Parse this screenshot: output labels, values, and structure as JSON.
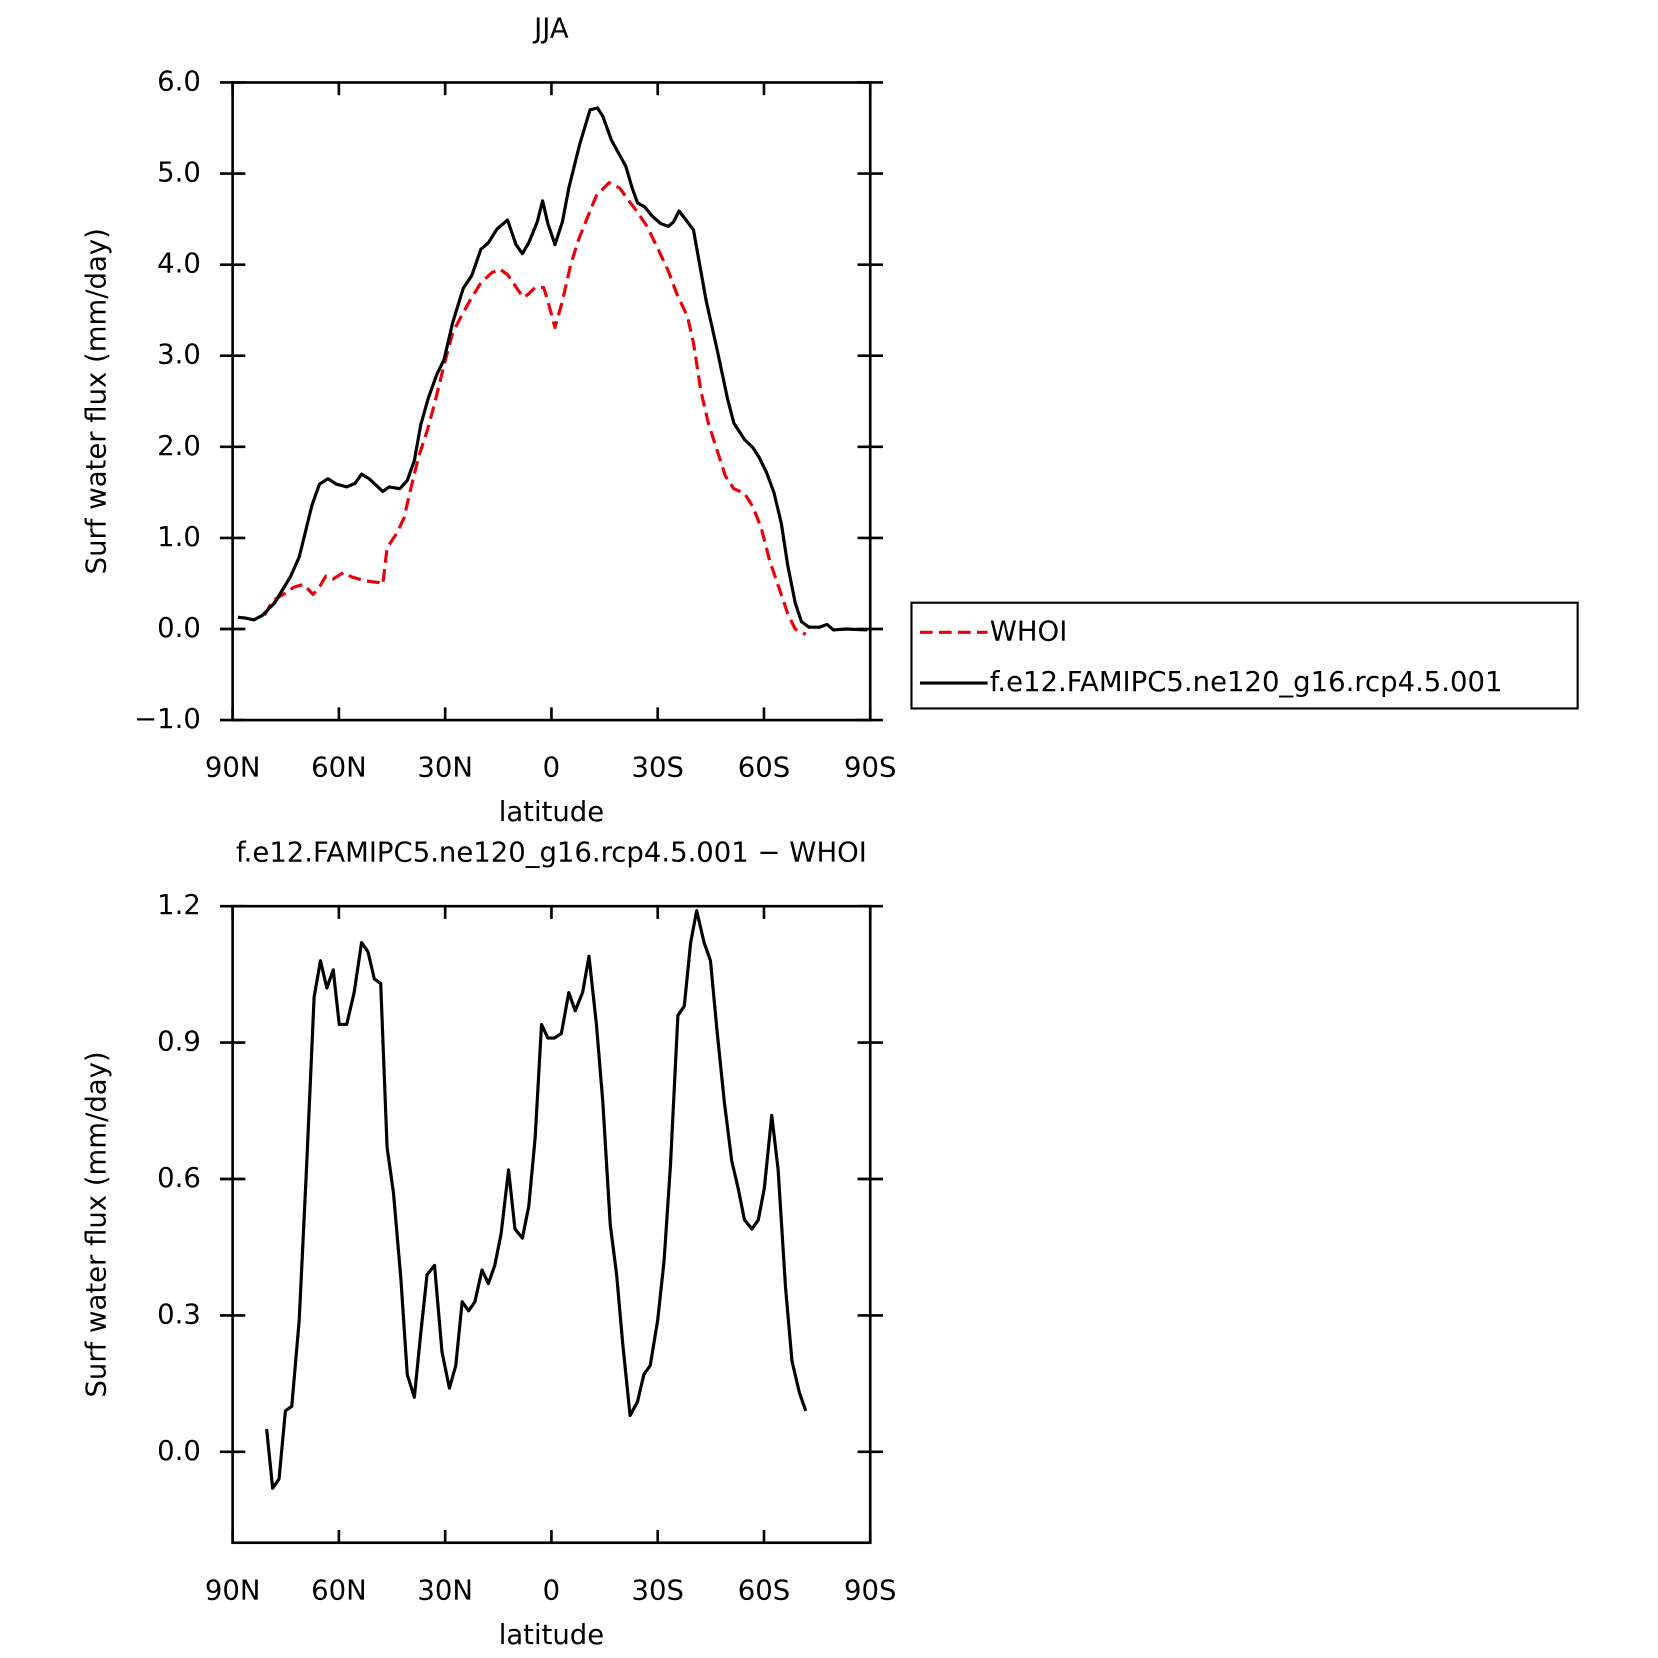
{
  "chart_data": [
    {
      "type": "line",
      "title": "JJA",
      "xlabel": "latitude",
      "ylabel": "Surf water flux (mm/day)",
      "xlim": [
        90,
        -90
      ],
      "xticks": [
        {
          "value": 90,
          "label": "90N"
        },
        {
          "value": 60,
          "label": "60N"
        },
        {
          "value": 30,
          "label": "30N"
        },
        {
          "value": 0,
          "label": "0"
        },
        {
          "value": -30,
          "label": "30S"
        },
        {
          "value": -60,
          "label": "60S"
        },
        {
          "value": -90,
          "label": "90S"
        }
      ],
      "ylim": [
        -1.0,
        6.0
      ],
      "yticks": [
        {
          "value": -1,
          "label": "−1.0"
        },
        {
          "value": 0,
          "label": "0.0"
        },
        {
          "value": 1,
          "label": "1.0"
        },
        {
          "value": 2,
          "label": "2.0"
        },
        {
          "value": 3,
          "label": "3.0"
        },
        {
          "value": 4,
          "label": "4.0"
        },
        {
          "value": 5,
          "label": "5.0"
        },
        {
          "value": 6,
          "label": "6.0"
        }
      ],
      "legend": "right",
      "series": [
        {
          "name": "WHOI",
          "color": "#e8000b",
          "dash": true,
          "x": [
            81.0,
            78.7,
            75.7,
            72.7,
            70.0,
            67.3,
            65.5,
            63.7,
            61.6,
            58.7,
            56.3,
            52.7,
            48.8,
            47.6,
            46.4,
            43.7,
            41.6,
            39.9,
            37.5,
            34.8,
            32.7,
            30.3,
            27.9,
            25.5,
            22.8,
            19.9,
            16.9,
            14.5,
            12.4,
            9.4,
            7.9,
            6.4,
            4.6,
            2.2,
            1.0,
            -1.0,
            -3.1,
            -5.5,
            -7.9,
            -10.3,
            -12.7,
            -16.3,
            -19.3,
            -21.9,
            -24.0,
            -27.0,
            -30.0,
            -33.0,
            -35.4,
            -38.4,
            -40.1,
            -42.2,
            -44.3,
            -46.7,
            -49.1,
            -51.5,
            -54.5,
            -56.9,
            -59.3,
            -61.6,
            -64.6,
            -66.7,
            -68.8,
            -71.8
          ],
          "values": [
            0.15,
            0.31,
            0.38,
            0.46,
            0.49,
            0.38,
            0.46,
            0.58,
            0.55,
            0.62,
            0.57,
            0.53,
            0.51,
            0.49,
            0.89,
            1.05,
            1.22,
            1.51,
            1.89,
            2.21,
            2.52,
            2.9,
            3.25,
            3.43,
            3.62,
            3.8,
            3.91,
            3.95,
            3.89,
            3.72,
            3.64,
            3.68,
            3.75,
            3.75,
            3.6,
            3.31,
            3.6,
            4.01,
            4.3,
            4.53,
            4.76,
            4.9,
            4.84,
            4.7,
            4.59,
            4.42,
            4.18,
            3.93,
            3.68,
            3.43,
            3.14,
            2.61,
            2.26,
            1.97,
            1.68,
            1.54,
            1.49,
            1.34,
            1.1,
            0.75,
            0.41,
            0.17,
            0.0,
            -0.06
          ]
        },
        {
          "name": "f.e12.FAMIPC5.ne120_g16.rcp4.5.001",
          "color": "#000000",
          "dash": false,
          "x": [
            88.5,
            86.4,
            84.0,
            81.6,
            78.1,
            73.6,
            71.2,
            67.6,
            65.5,
            63.1,
            60.7,
            57.8,
            55.4,
            53.6,
            51.5,
            47.6,
            45.8,
            42.8,
            40.7,
            38.7,
            36.9,
            34.8,
            32.4,
            30.3,
            27.9,
            24.9,
            22.5,
            19.9,
            17.8,
            15.4,
            12.4,
            10.0,
            8.2,
            6.4,
            4.0,
            2.5,
            1.0,
            -1.0,
            -3.1,
            -4.9,
            -7.9,
            -10.9,
            -13.0,
            -14.5,
            -16.9,
            -19.3,
            -21.0,
            -22.8,
            -24.3,
            -26.4,
            -28.5,
            -30.9,
            -33.0,
            -34.5,
            -36.0,
            -38.4,
            -40.1,
            -41.3,
            -43.7,
            -46.7,
            -49.7,
            -51.5,
            -54.5,
            -56.9,
            -58.7,
            -60.7,
            -62.8,
            -64.9,
            -66.7,
            -68.8,
            -70.6,
            -72.7,
            -75.7,
            -77.8,
            -79.6,
            -83.2,
            -89.1
          ],
          "values": [
            0.13,
            0.12,
            0.1,
            0.15,
            0.29,
            0.58,
            0.79,
            1.36,
            1.59,
            1.65,
            1.59,
            1.56,
            1.6,
            1.7,
            1.65,
            1.51,
            1.56,
            1.54,
            1.63,
            1.85,
            2.24,
            2.53,
            2.79,
            2.96,
            3.36,
            3.74,
            3.88,
            4.17,
            4.24,
            4.39,
            4.49,
            4.22,
            4.12,
            4.24,
            4.47,
            4.7,
            4.45,
            4.22,
            4.47,
            4.84,
            5.31,
            5.7,
            5.72,
            5.63,
            5.37,
            5.2,
            5.08,
            4.84,
            4.68,
            4.63,
            4.53,
            4.45,
            4.42,
            4.47,
            4.59,
            4.47,
            4.38,
            4.12,
            3.6,
            3.08,
            2.53,
            2.26,
            2.08,
            1.99,
            1.88,
            1.72,
            1.5,
            1.16,
            0.7,
            0.29,
            0.08,
            0.02,
            0.02,
            0.05,
            -0.01,
            0,
            -0.01
          ]
        }
      ]
    },
    {
      "type": "line",
      "title": "f.e12.FAMIPC5.ne120_g16.rcp4.5.001 − WHOI",
      "xlabel": "latitude",
      "ylabel": "Surf water flux (mm/day)",
      "xlim": [
        90,
        -90
      ],
      "xticks": [
        {
          "value": 90,
          "label": "90N"
        },
        {
          "value": 60,
          "label": "60N"
        },
        {
          "value": 30,
          "label": "30N"
        },
        {
          "value": 0,
          "label": "0"
        },
        {
          "value": -30,
          "label": "30S"
        },
        {
          "value": -60,
          "label": "60S"
        },
        {
          "value": -90,
          "label": "90S"
        }
      ],
      "ylim": [
        -0.2,
        1.2
      ],
      "yticks": [
        {
          "value": 0,
          "label": "0.0"
        },
        0.3,
        0.6,
        0.9,
        1.2
      ],
      "series": [
        {
          "color": "#000000",
          "dash": false,
          "x": [
            80.4,
            78.7,
            76.9,
            75.1,
            73.3,
            71.2,
            69.1,
            67.0,
            65.2,
            63.4,
            61.6,
            59.9,
            57.8,
            55.7,
            53.6,
            51.8,
            50.0,
            48.2,
            46.4,
            44.6,
            42.5,
            40.7,
            38.7,
            36.9,
            35.1,
            33.0,
            30.9,
            28.8,
            27.0,
            25.2,
            23.4,
            21.6,
            19.6,
            17.8,
            16.0,
            14.2,
            12.1,
            10.3,
            8.2,
            6.4,
            4.6,
            2.8,
            1.0,
            -0.8,
            -2.8,
            -4.9,
            -6.7,
            -8.8,
            -10.6,
            -12.7,
            -14.5,
            -16.6,
            -18.4,
            -20.1,
            -22.2,
            -24.3,
            -26.1,
            -27.9,
            -30.0,
            -31.8,
            -33.6,
            -35.7,
            -37.5,
            -39.3,
            -41.0,
            -43.1,
            -44.9,
            -46.7,
            -48.8,
            -50.9,
            -52.7,
            -54.5,
            -56.6,
            -58.4,
            -60.1,
            -62.2,
            -64.0,
            -66.1,
            -67.9,
            -70.0,
            -71.8
          ],
          "values": [
            0.05,
            -0.08,
            -0.06,
            0.09,
            0.1,
            0.29,
            0.63,
            1.0,
            1.08,
            1.02,
            1.06,
            0.94,
            0.94,
            1.01,
            1.12,
            1.1,
            1.04,
            1.03,
            0.67,
            0.57,
            0.38,
            0.17,
            0.12,
            0.26,
            0.39,
            0.41,
            0.22,
            0.14,
            0.19,
            0.33,
            0.31,
            0.33,
            0.4,
            0.37,
            0.41,
            0.48,
            0.62,
            0.49,
            0.47,
            0.54,
            0.69,
            0.94,
            0.91,
            0.91,
            0.92,
            1.01,
            0.97,
            1.01,
            1.09,
            0.94,
            0.77,
            0.5,
            0.39,
            0.24,
            0.08,
            0.11,
            0.17,
            0.19,
            0.29,
            0.42,
            0.63,
            0.96,
            0.98,
            1.12,
            1.19,
            1.12,
            1.08,
            0.93,
            0.77,
            0.64,
            0.58,
            0.51,
            0.49,
            0.51,
            0.58,
            0.74,
            0.62,
            0.36,
            0.2,
            0.13,
            0.09
          ]
        }
      ]
    }
  ]
}
